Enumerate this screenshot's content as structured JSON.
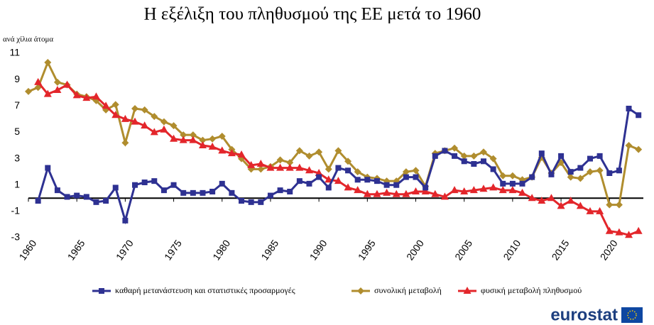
{
  "chart_data": {
    "type": "line",
    "title": "Η εξέλιξη του πληθυσμού της ΕΕ μετά το 1960",
    "y_label": "ανά χίλια άτομα",
    "logo": "eurostat",
    "x": [
      1960,
      1961,
      1962,
      1963,
      1964,
      1965,
      1966,
      1967,
      1968,
      1969,
      1970,
      1971,
      1972,
      1973,
      1974,
      1975,
      1976,
      1977,
      1978,
      1979,
      1980,
      1981,
      1982,
      1983,
      1984,
      1985,
      1986,
      1987,
      1988,
      1989,
      1990,
      1991,
      1992,
      1993,
      1994,
      1995,
      1996,
      1997,
      1998,
      1999,
      2000,
      2001,
      2002,
      2003,
      2004,
      2005,
      2006,
      2007,
      2008,
      2009,
      2010,
      2011,
      2012,
      2013,
      2014,
      2015,
      2016,
      2017,
      2018,
      2019,
      2020,
      2021,
      2022,
      2023
    ],
    "series": [
      {
        "name": "καθαρή μετανάστευση και στατιστικές προσαρμογές",
        "color": "#2e3192",
        "marker": "square",
        "values": [
          null,
          -0.2,
          2.3,
          0.6,
          0.1,
          0.2,
          0.1,
          -0.3,
          -0.2,
          0.8,
          -1.7,
          1.0,
          1.2,
          1.3,
          0.6,
          1.0,
          0.4,
          0.4,
          0.4,
          0.5,
          1.1,
          0.4,
          -0.2,
          -0.3,
          -0.3,
          0.2,
          0.6,
          0.5,
          1.3,
          1.1,
          1.6,
          0.8,
          2.3,
          2.1,
          1.4,
          1.4,
          1.3,
          1.0,
          1.0,
          1.6,
          1.6,
          0.8,
          3.2,
          3.6,
          3.2,
          2.8,
          2.6,
          2.8,
          2.2,
          1.1,
          1.1,
          1.1,
          1.6,
          3.4,
          1.8,
          3.2,
          2.0,
          2.3,
          3.0,
          3.2,
          1.9,
          2.1,
          6.8,
          6.3
        ]
      },
      {
        "name": "συνολική μεταβολή",
        "color": "#b08d2e",
        "marker": "diamond",
        "values": [
          8.1,
          8.4,
          10.3,
          8.8,
          8.6,
          7.9,
          7.7,
          7.4,
          6.7,
          7.1,
          4.2,
          6.8,
          6.7,
          6.2,
          5.8,
          5.5,
          4.8,
          4.8,
          4.4,
          4.5,
          4.7,
          3.7,
          3.0,
          2.2,
          2.2,
          2.4,
          2.9,
          2.7,
          3.6,
          3.2,
          3.5,
          2.2,
          3.6,
          2.8,
          2.0,
          1.6,
          1.5,
          1.3,
          1.3,
          2.0,
          2.1,
          0.9,
          3.4,
          3.6,
          3.8,
          3.2,
          3.2,
          3.5,
          3.0,
          1.7,
          1.7,
          1.4,
          1.6,
          3.1,
          1.9,
          2.7,
          1.6,
          1.5,
          2.0,
          2.1,
          -0.5,
          -0.5,
          4.0,
          3.7
        ]
      },
      {
        "name": "φυσική μεταβολή πληθυσμού",
        "color": "#e3262b",
        "marker": "triangle",
        "values": [
          null,
          8.8,
          7.9,
          8.2,
          8.6,
          7.8,
          7.6,
          7.7,
          7.0,
          6.3,
          6.0,
          5.8,
          5.5,
          5.0,
          5.2,
          4.5,
          4.4,
          4.4,
          4.0,
          3.9,
          3.6,
          3.4,
          3.3,
          2.5,
          2.6,
          2.3,
          2.3,
          2.3,
          2.3,
          2.1,
          1.9,
          1.4,
          1.3,
          0.8,
          0.6,
          0.3,
          0.3,
          0.4,
          0.3,
          0.3,
          0.5,
          0.5,
          0.3,
          0.1,
          0.6,
          0.5,
          0.6,
          0.7,
          0.8,
          0.6,
          0.6,
          0.4,
          0.0,
          -0.2,
          0.0,
          -0.6,
          -0.2,
          -0.6,
          -1.0,
          -1.0,
          -2.5,
          -2.6,
          -2.8,
          -2.5
        ]
      }
    ],
    "xlim": [
      1960,
      2023.5
    ],
    "xticks": [
      1960,
      1965,
      1970,
      1975,
      1980,
      1985,
      1990,
      1995,
      2000,
      2005,
      2010,
      2015,
      2020
    ],
    "ylim": [
      -3,
      11
    ],
    "yticks": [
      -3,
      -1,
      1,
      3,
      5,
      7,
      9,
      11
    ],
    "grid": false,
    "legend": "bottom"
  }
}
